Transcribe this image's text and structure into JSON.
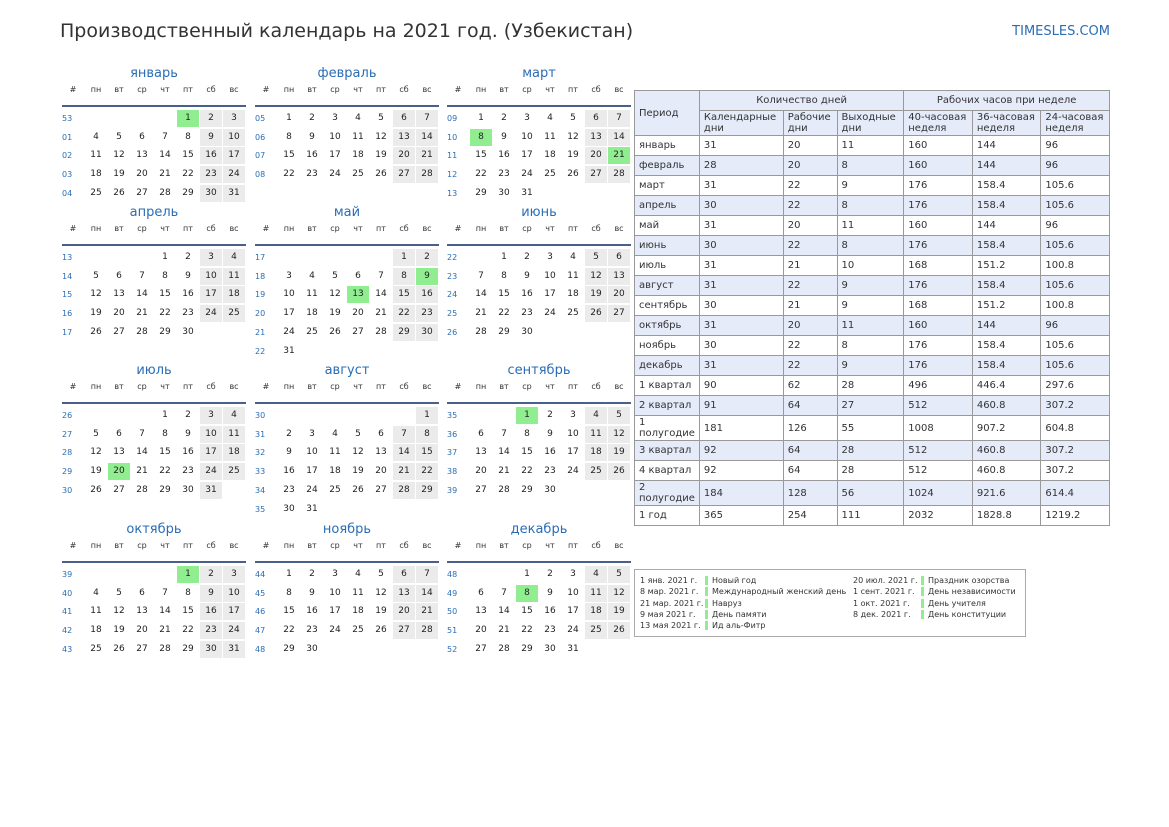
{
  "header": {
    "title": "Производственный календарь на 2021 год. (Узбекистан)",
    "site": "TIMESLES.COM"
  },
  "calendar": {
    "week_header": [
      "#",
      "пн",
      "вт",
      "ср",
      "чт",
      "пт",
      "сб",
      "вс"
    ],
    "months": [
      {
        "name": "январь",
        "holidays": [
          1
        ],
        "weeks": [
          [
            "53",
            null,
            null,
            null,
            null,
            1,
            2,
            3
          ],
          [
            "01",
            4,
            5,
            6,
            7,
            8,
            9,
            10
          ],
          [
            "02",
            11,
            12,
            13,
            14,
            15,
            16,
            17
          ],
          [
            "03",
            18,
            19,
            20,
            21,
            22,
            23,
            24
          ],
          [
            "04",
            25,
            26,
            27,
            28,
            29,
            30,
            31
          ]
        ]
      },
      {
        "name": "февраль",
        "holidays": [],
        "weeks": [
          [
            "05",
            1,
            2,
            3,
            4,
            5,
            6,
            7
          ],
          [
            "06",
            8,
            9,
            10,
            11,
            12,
            13,
            14
          ],
          [
            "07",
            15,
            16,
            17,
            18,
            19,
            20,
            21
          ],
          [
            "08",
            22,
            23,
            24,
            25,
            26,
            27,
            28
          ]
        ]
      },
      {
        "name": "март",
        "holidays": [
          8,
          21
        ],
        "weeks": [
          [
            "09",
            1,
            2,
            3,
            4,
            5,
            6,
            7
          ],
          [
            "10",
            8,
            9,
            10,
            11,
            12,
            13,
            14
          ],
          [
            "11",
            15,
            16,
            17,
            18,
            19,
            20,
            21
          ],
          [
            "12",
            22,
            23,
            24,
            25,
            26,
            27,
            28
          ],
          [
            "13",
            29,
            30,
            31,
            null,
            null,
            null,
            null
          ]
        ]
      },
      {
        "name": "апрель",
        "holidays": [],
        "weeks": [
          [
            "13",
            null,
            null,
            null,
            1,
            2,
            3,
            4
          ],
          [
            "14",
            5,
            6,
            7,
            8,
            9,
            10,
            11
          ],
          [
            "15",
            12,
            13,
            14,
            15,
            16,
            17,
            18
          ],
          [
            "16",
            19,
            20,
            21,
            22,
            23,
            24,
            25
          ],
          [
            "17",
            26,
            27,
            28,
            29,
            30,
            null,
            null
          ]
        ]
      },
      {
        "name": "май",
        "holidays": [
          9,
          13
        ],
        "weeks": [
          [
            "17",
            null,
            null,
            null,
            null,
            null,
            1,
            2
          ],
          [
            "18",
            3,
            4,
            5,
            6,
            7,
            8,
            9
          ],
          [
            "19",
            10,
            11,
            12,
            13,
            14,
            15,
            16
          ],
          [
            "20",
            17,
            18,
            19,
            20,
            21,
            22,
            23
          ],
          [
            "21",
            24,
            25,
            26,
            27,
            28,
            29,
            30
          ],
          [
            "22",
            31,
            null,
            null,
            null,
            null,
            null,
            null
          ]
        ]
      },
      {
        "name": "июнь",
        "holidays": [],
        "weeks": [
          [
            "22",
            null,
            1,
            2,
            3,
            4,
            5,
            6
          ],
          [
            "23",
            7,
            8,
            9,
            10,
            11,
            12,
            13
          ],
          [
            "24",
            14,
            15,
            16,
            17,
            18,
            19,
            20
          ],
          [
            "25",
            21,
            22,
            23,
            24,
            25,
            26,
            27
          ],
          [
            "26",
            28,
            29,
            30,
            null,
            null,
            null,
            null
          ]
        ]
      },
      {
        "name": "июль",
        "holidays": [
          20
        ],
        "weeks": [
          [
            "26",
            null,
            null,
            null,
            1,
            2,
            3,
            4
          ],
          [
            "27",
            5,
            6,
            7,
            8,
            9,
            10,
            11
          ],
          [
            "28",
            12,
            13,
            14,
            15,
            16,
            17,
            18
          ],
          [
            "29",
            19,
            20,
            21,
            22,
            23,
            24,
            25
          ],
          [
            "30",
            26,
            27,
            28,
            29,
            30,
            31,
            null
          ]
        ]
      },
      {
        "name": "август",
        "holidays": [],
        "weeks": [
          [
            "30",
            null,
            null,
            null,
            null,
            null,
            null,
            1
          ],
          [
            "31",
            2,
            3,
            4,
            5,
            6,
            7,
            8
          ],
          [
            "32",
            9,
            10,
            11,
            12,
            13,
            14,
            15
          ],
          [
            "33",
            16,
            17,
            18,
            19,
            20,
            21,
            22
          ],
          [
            "34",
            23,
            24,
            25,
            26,
            27,
            28,
            29
          ],
          [
            "35",
            30,
            31,
            null,
            null,
            null,
            null,
            null
          ]
        ]
      },
      {
        "name": "сентябрь",
        "holidays": [
          1
        ],
        "weeks": [
          [
            "35",
            null,
            null,
            1,
            2,
            3,
            4,
            5
          ],
          [
            "36",
            6,
            7,
            8,
            9,
            10,
            11,
            12
          ],
          [
            "37",
            13,
            14,
            15,
            16,
            17,
            18,
            19
          ],
          [
            "38",
            20,
            21,
            22,
            23,
            24,
            25,
            26
          ],
          [
            "39",
            27,
            28,
            29,
            30,
            null,
            null,
            null
          ]
        ]
      },
      {
        "name": "октябрь",
        "holidays": [
          1
        ],
        "weeks": [
          [
            "39",
            null,
            null,
            null,
            null,
            1,
            2,
            3
          ],
          [
            "40",
            4,
            5,
            6,
            7,
            8,
            9,
            10
          ],
          [
            "41",
            11,
            12,
            13,
            14,
            15,
            16,
            17
          ],
          [
            "42",
            18,
            19,
            20,
            21,
            22,
            23,
            24
          ],
          [
            "43",
            25,
            26,
            27,
            28,
            29,
            30,
            31
          ]
        ]
      },
      {
        "name": "ноябрь",
        "holidays": [],
        "weeks": [
          [
            "44",
            1,
            2,
            3,
            4,
            5,
            6,
            7
          ],
          [
            "45",
            8,
            9,
            10,
            11,
            12,
            13,
            14
          ],
          [
            "46",
            15,
            16,
            17,
            18,
            19,
            20,
            21
          ],
          [
            "47",
            22,
            23,
            24,
            25,
            26,
            27,
            28
          ],
          [
            "48",
            29,
            30,
            null,
            null,
            null,
            null,
            null
          ]
        ]
      },
      {
        "name": "декабрь",
        "holidays": [
          8
        ],
        "weeks": [
          [
            "48",
            null,
            null,
            1,
            2,
            3,
            4,
            5
          ],
          [
            "49",
            6,
            7,
            8,
            9,
            10,
            11,
            12
          ],
          [
            "50",
            13,
            14,
            15,
            16,
            17,
            18,
            19
          ],
          [
            "51",
            20,
            21,
            22,
            23,
            24,
            25,
            26
          ],
          [
            "52",
            27,
            28,
            29,
            30,
            31,
            null,
            null
          ]
        ]
      }
    ]
  },
  "table": {
    "period_header": "Период",
    "group_headers": [
      "Количество дней",
      "Рабочих часов при неделе"
    ],
    "columns": [
      "Календарные дни",
      "Рабочие дни",
      "Выходные дни",
      "40-часовая неделя",
      "36-часовая неделя",
      "24-часовая неделя"
    ],
    "rows": [
      [
        "январь",
        31,
        20,
        11,
        160,
        144,
        96
      ],
      [
        "февраль",
        28,
        20,
        8,
        160,
        144,
        96
      ],
      [
        "март",
        31,
        22,
        9,
        176,
        158.4,
        105.6
      ],
      [
        "апрель",
        30,
        22,
        8,
        176,
        158.4,
        105.6
      ],
      [
        "май",
        31,
        20,
        11,
        160,
        144,
        96
      ],
      [
        "июнь",
        30,
        22,
        8,
        176,
        158.4,
        105.6
      ],
      [
        "июль",
        31,
        21,
        10,
        168,
        151.2,
        100.8
      ],
      [
        "август",
        31,
        22,
        9,
        176,
        158.4,
        105.6
      ],
      [
        "сентябрь",
        30,
        21,
        9,
        168,
        151.2,
        100.8
      ],
      [
        "октябрь",
        31,
        20,
        11,
        160,
        144,
        96
      ],
      [
        "ноябрь",
        30,
        22,
        8,
        176,
        158.4,
        105.6
      ],
      [
        "декабрь",
        31,
        22,
        9,
        176,
        158.4,
        105.6
      ],
      [
        "1 квартал",
        90,
        62,
        28,
        496,
        446.4,
        297.6
      ],
      [
        "2 квартал",
        91,
        64,
        27,
        512,
        460.8,
        307.2
      ],
      [
        "1 полугодие",
        181,
        126,
        55,
        1008,
        907.2,
        604.8
      ],
      [
        "3 квартал",
        92,
        64,
        28,
        512,
        460.8,
        307.2
      ],
      [
        "4 квартал",
        92,
        64,
        28,
        512,
        460.8,
        307.2
      ],
      [
        "2 полугодие",
        184,
        128,
        56,
        1024,
        921.6,
        614.4
      ],
      [
        "1 год",
        365,
        254,
        111,
        2032,
        1828.8,
        1219.2
      ]
    ]
  },
  "holidays": [
    {
      "date": "1 янв. 2021 г.",
      "name": "Новый год"
    },
    {
      "date": "8 мар. 2021 г.",
      "name": "Международный женский день"
    },
    {
      "date": "21 мар. 2021 г.",
      "name": "Навруз"
    },
    {
      "date": "9 мая 2021 г.",
      "name": "День памяти"
    },
    {
      "date": "13 мая 2021 г.",
      "name": "Ид аль-Фитр"
    },
    {
      "date": "20 июл. 2021 г.",
      "name": "Праздник озорства"
    },
    {
      "date": "1 сент. 2021 г.",
      "name": "День независимости"
    },
    {
      "date": "1 окт. 2021 г.",
      "name": "День учителя"
    },
    {
      "date": "8 дек. 2021 г.",
      "name": "День конституции"
    }
  ]
}
